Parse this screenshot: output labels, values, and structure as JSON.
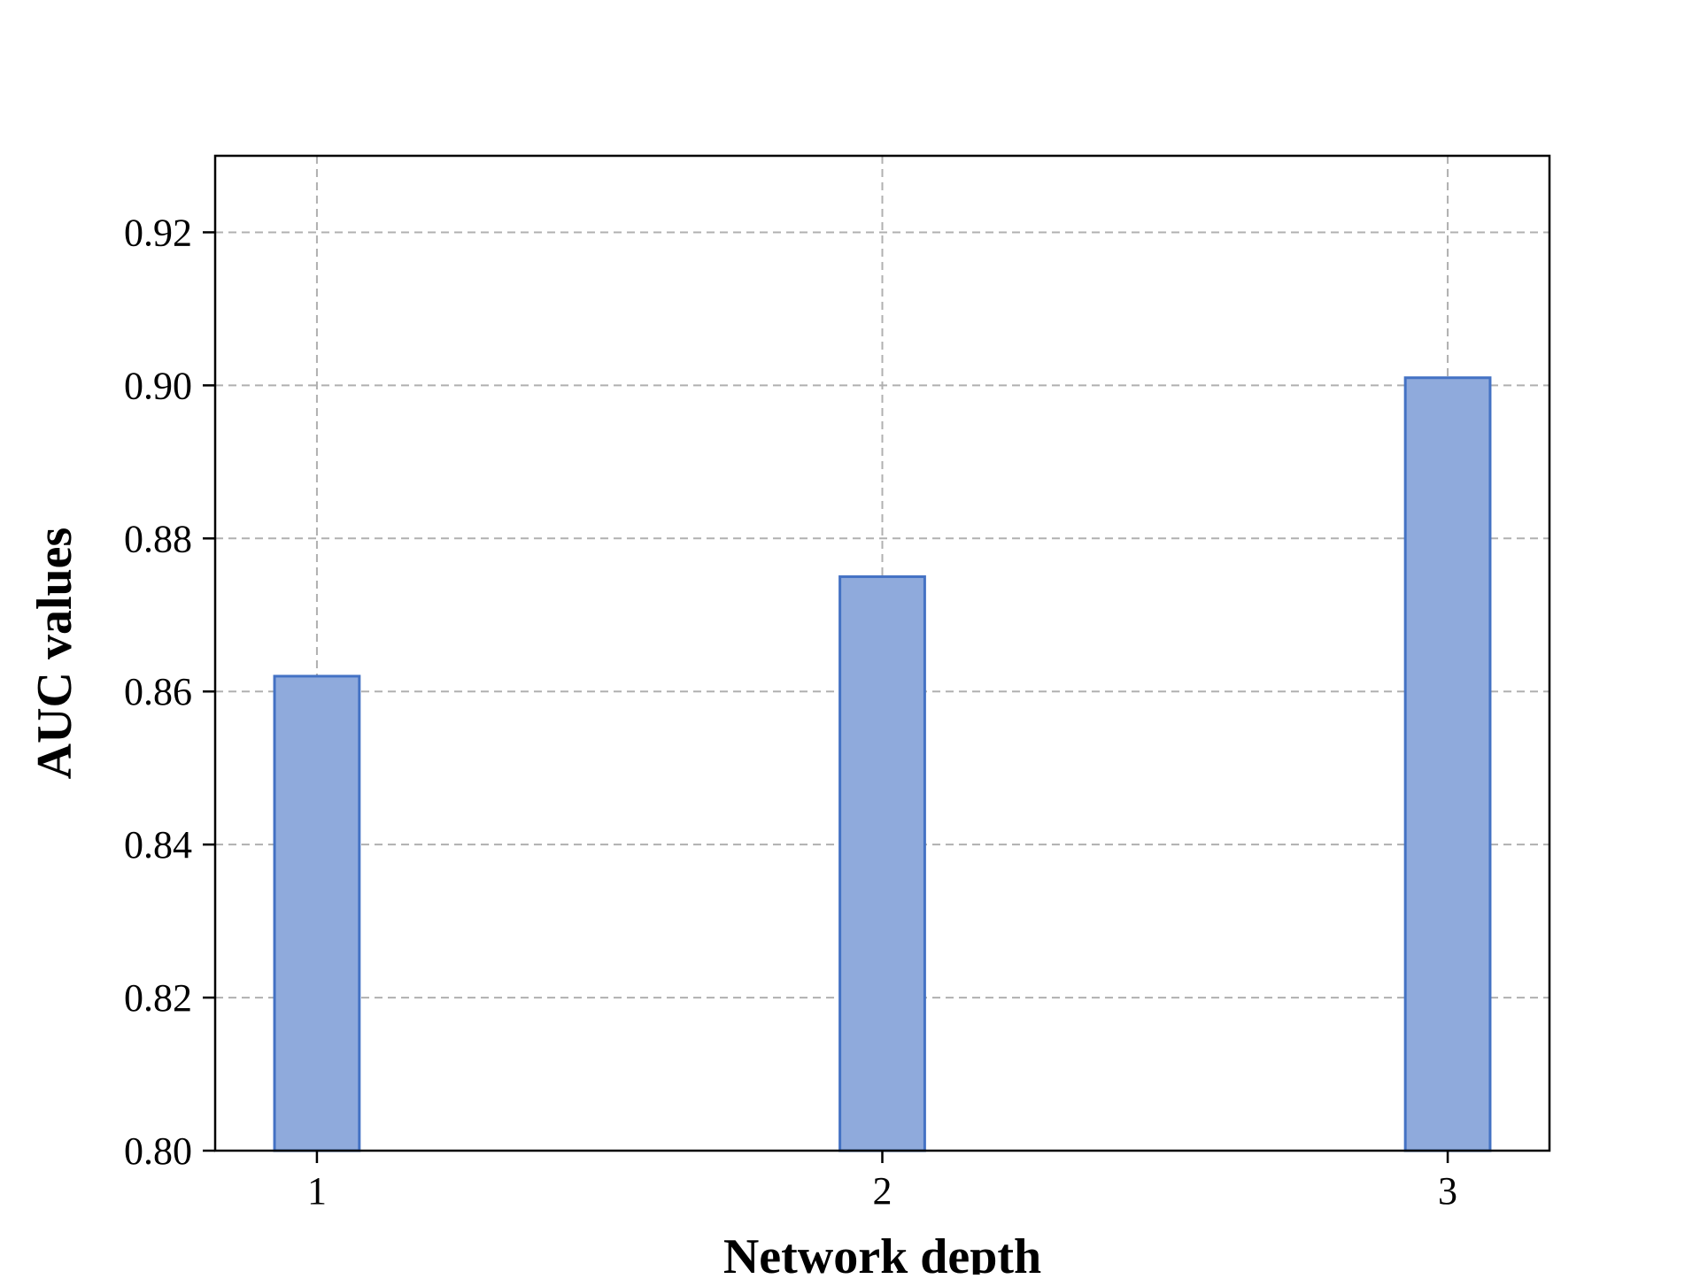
{
  "chart_data": {
    "type": "bar",
    "title": "",
    "xlabel": "Network depth",
    "ylabel": "AUC values",
    "categories": [
      "1",
      "2",
      "3"
    ],
    "series": [
      {
        "values": [
          0.862,
          0.875,
          0.901
        ]
      }
    ],
    "ylim": [
      0.8,
      0.93
    ],
    "yticks": [
      0.8,
      0.82,
      0.84,
      0.86,
      0.88,
      0.9,
      0.92
    ],
    "ytick_labels": [
      "0.80",
      "0.82",
      "0.84",
      "0.86",
      "0.88",
      "0.90",
      "0.92"
    ],
    "xlim": [
      0.82,
      3.18
    ],
    "grid": true,
    "grid_style": "dashed",
    "legend": "none",
    "colors": {
      "bar_fill": "#8faadc",
      "bar_edge": "#4472c4",
      "grid": "#b0b0b0",
      "axes": "#000000"
    }
  }
}
